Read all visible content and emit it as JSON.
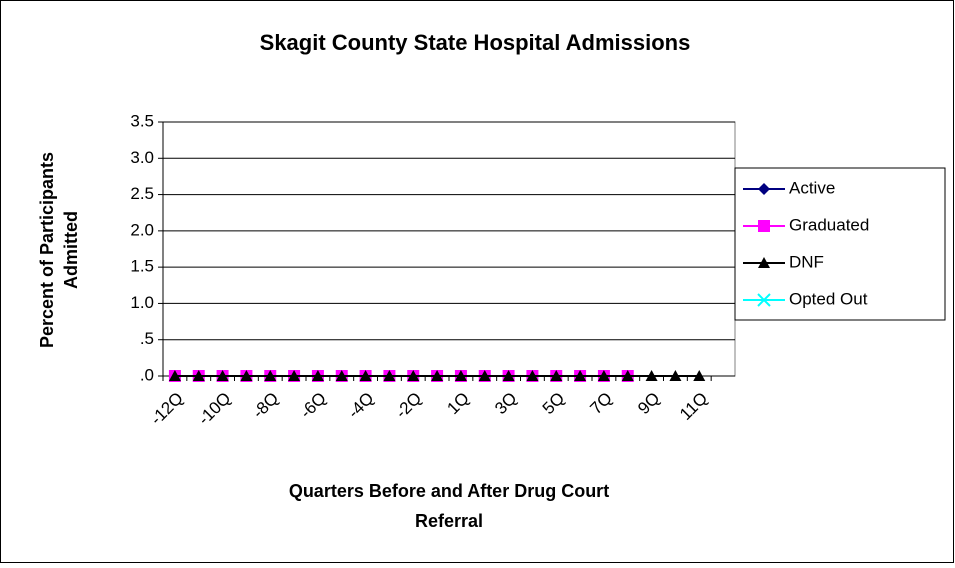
{
  "chart_data": {
    "type": "line",
    "title": "Skagit County State Hospital Admissions",
    "x_label": "Quarters Before and After Drug Court Referral",
    "y_label": "Percent of Participants Admitted",
    "categories": [
      "-12Q",
      null,
      "-10Q",
      null,
      "-8Q",
      null,
      "-6Q",
      null,
      "-4Q",
      null,
      "-2Q",
      null,
      "1Q",
      null,
      "3Q",
      null,
      "5Q",
      null,
      "7Q",
      null,
      "9Q",
      null,
      "11Q",
      null
    ],
    "series": [
      {
        "name": "Active",
        "color": "#000080",
        "marker": "diamond",
        "values": [
          0,
          0,
          0,
          0,
          0,
          0,
          0,
          0,
          0,
          0,
          0,
          0,
          0,
          0,
          0,
          0,
          0,
          0,
          0,
          0,
          null,
          null,
          null,
          null
        ]
      },
      {
        "name": "Graduated",
        "color": "#ff00ff",
        "marker": "square",
        "values": [
          0,
          0,
          0,
          0,
          0,
          0,
          0,
          0,
          0,
          0,
          0,
          0,
          0,
          0,
          0,
          0,
          0,
          0,
          0,
          0,
          null,
          null,
          null,
          null
        ]
      },
      {
        "name": "DNF",
        "color": "#000000",
        "marker": "triangle",
        "values": [
          0,
          0,
          0,
          0,
          0,
          0,
          0,
          0,
          0,
          0,
          0,
          0,
          0,
          0,
          0,
          0,
          0,
          0,
          0,
          0,
          0,
          0,
          0,
          null
        ]
      },
      {
        "name": "Opted Out",
        "color": "#00ffff",
        "marker": "x",
        "values": [
          null,
          null,
          null,
          null,
          null,
          null,
          null,
          null,
          null,
          null,
          null,
          null,
          null,
          null,
          null,
          null,
          null,
          null,
          null,
          null,
          null,
          null,
          null,
          null
        ]
      }
    ],
    "ylim": [
      0,
      3.5
    ],
    "yticks": [
      {
        "value": 0,
        "label": ".0"
      },
      {
        "value": 0.5,
        "label": ".5"
      },
      {
        "value": 1,
        "label": "1.0"
      },
      1.5,
      {
        "value": 2,
        "label": "2.0"
      },
      2.5,
      {
        "value": 3,
        "label": "3.0"
      },
      3.5
    ],
    "grid": true,
    "legend": "right"
  }
}
